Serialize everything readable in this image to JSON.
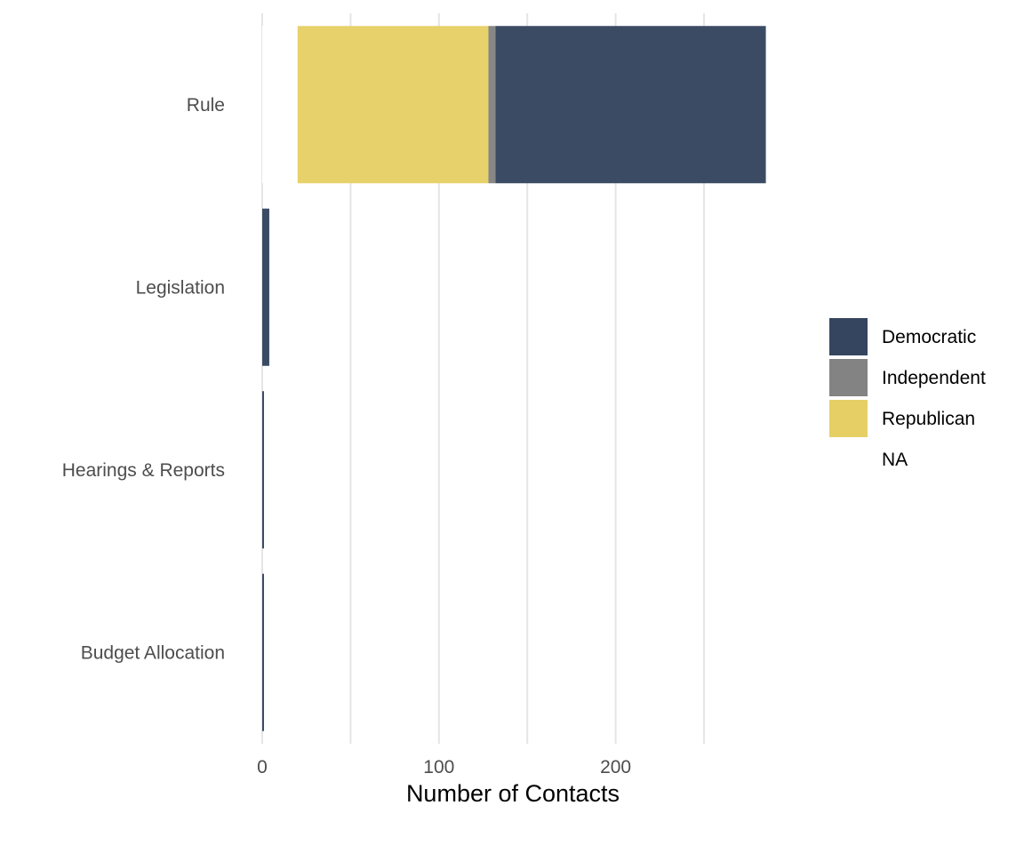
{
  "chart_data": {
    "type": "bar",
    "orientation": "horizontal",
    "stacked": true,
    "title": "",
    "xlabel": "Number of Contacts",
    "ylabel": "",
    "categories": [
      "Rule",
      "Legislation",
      "Hearings & Reports",
      "Budget Allocation"
    ],
    "series": [
      {
        "name": "NA",
        "color": "#ffffff",
        "values": [
          20,
          0,
          0,
          0
        ]
      },
      {
        "name": "Republican",
        "color": "#e6d066",
        "values": [
          108,
          0,
          0,
          0
        ]
      },
      {
        "name": "Independent",
        "color": "#838383",
        "values": [
          4,
          0,
          0,
          0
        ]
      },
      {
        "name": "Democratic",
        "color": "#35455f",
        "values": [
          153,
          4,
          1,
          1
        ]
      }
    ],
    "xlim": [
      0,
      285
    ],
    "xticks": [
      0,
      100,
      200
    ],
    "xtick_labels": [
      "0",
      "100",
      "200"
    ],
    "x_minor_gridlines": [
      50,
      150,
      250
    ],
    "grid": true,
    "legend": {
      "position": "right",
      "entries": [
        {
          "label": "Democratic",
          "color": "#35455f"
        },
        {
          "label": "Independent",
          "color": "#838383"
        },
        {
          "label": "Republican",
          "color": "#e6d066"
        },
        {
          "label": "NA",
          "color": "#ffffff"
        }
      ]
    }
  }
}
